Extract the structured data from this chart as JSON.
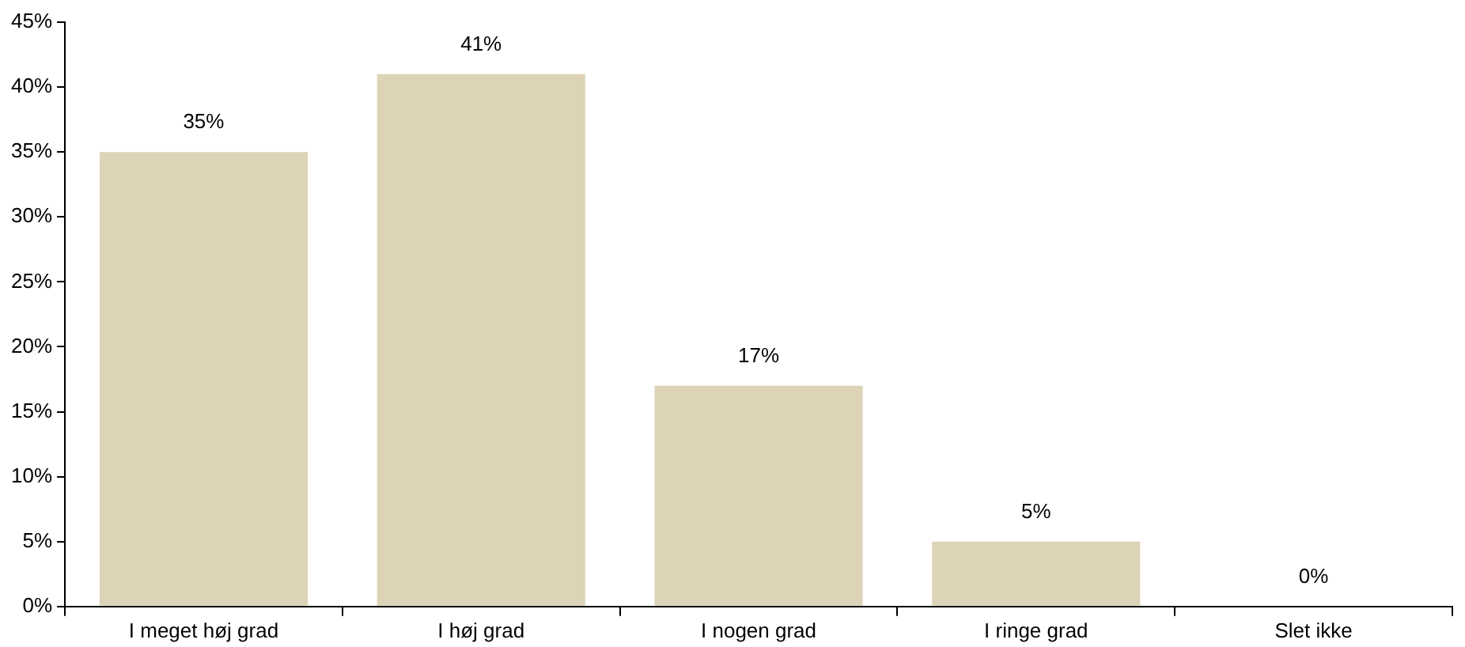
{
  "chart_data": {
    "type": "bar",
    "categories": [
      "I meget høj grad",
      "I høj grad",
      "I nogen grad",
      "I ringe grad",
      "Slet ikke"
    ],
    "values": [
      35,
      41,
      17,
      5,
      0
    ],
    "value_labels": [
      "35%",
      "41%",
      "17%",
      "5%",
      "0%"
    ],
    "color": "#ddd3b6",
    "ylim": [
      0,
      45
    ],
    "yticks": [
      {
        "value": 0,
        "label": "0%"
      },
      {
        "value": 5,
        "label": "5%"
      },
      {
        "value": 10,
        "label": "10%"
      },
      {
        "value": 15,
        "label": "15%"
      },
      {
        "value": 20,
        "label": "20%"
      },
      {
        "value": 25,
        "label": "25%"
      },
      {
        "value": 30,
        "label": "30%"
      },
      {
        "value": 35,
        "label": "35%"
      },
      {
        "value": 40,
        "label": "40%"
      },
      {
        "value": 45,
        "label": "45%"
      }
    ],
    "grid": false,
    "legend": false
  }
}
